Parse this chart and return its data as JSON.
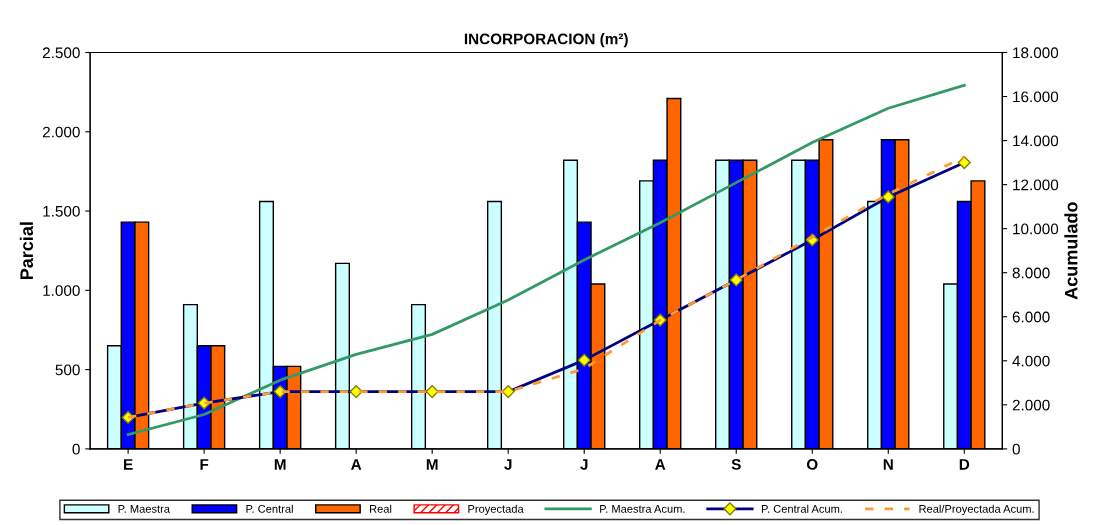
{
  "chart_data": {
    "type": "bar",
    "title": "INCORPORACION (m²)",
    "ylabel": "Parcial",
    "y2label": "Acumulado",
    "categories": [
      "E",
      "F",
      "M",
      "A",
      "M",
      "J",
      "J",
      "A",
      "S",
      "O",
      "N",
      "D"
    ],
    "series": [
      {
        "name": "P. Maestra",
        "color": "#ccffff",
        "values": [
          650,
          910,
          1560,
          1170,
          910,
          1560,
          1820,
          1690,
          1820,
          1820,
          1560,
          1040
        ]
      },
      {
        "name": "P. Central",
        "color": "#0000ff",
        "values": [
          1430,
          650,
          520,
          null,
          null,
          null,
          1430,
          1820,
          1820,
          1820,
          1950,
          1560
        ]
      },
      {
        "name": "Real",
        "color": "#ff6600",
        "values": [
          1430,
          650,
          520,
          null,
          null,
          null,
          1040,
          2210,
          1820,
          1950,
          1950,
          1690
        ]
      },
      {
        "name": "Proyectada",
        "color": "#ff0000",
        "values": [
          null,
          null,
          null,
          null,
          null,
          null,
          null,
          null,
          null,
          null,
          null,
          null
        ]
      },
      {
        "name": "P. Maestra Acum.",
        "type": "line",
        "axis": "y2",
        "color": "#339966",
        "line_style": "solid",
        "marker": "none",
        "values": [
          650,
          1560,
          3120,
          4290,
          5200,
          6760,
          8580,
          10270,
          12090,
          13910,
          15470,
          16510
        ]
      },
      {
        "name": "P. Central Acum.",
        "type": "line",
        "axis": "y2",
        "color": "#000080",
        "line_style": "solid",
        "marker": "diamond",
        "values": [
          1430,
          2080,
          2600,
          2600,
          2600,
          2600,
          4030,
          5850,
          7670,
          9490,
          11440,
          13000
        ]
      },
      {
        "name": "Real/Proyectada Acum.",
        "type": "line",
        "axis": "y2",
        "color": "#ff9933",
        "line_style": "dashed",
        "marker": "none",
        "values": [
          1430,
          2080,
          2600,
          2600,
          2600,
          2600,
          3640,
          5850,
          7670,
          9620,
          11570,
          13260
        ]
      }
    ],
    "ylim": [
      0,
      2500
    ],
    "yticks": [
      0,
      500,
      {
        "value": 1000,
        "label": "1.000"
      },
      {
        "value": 1500,
        "label": "1.500"
      },
      {
        "value": 2000,
        "label": "2.000"
      },
      {
        "value": 2500,
        "label": "2.500"
      }
    ],
    "y2lim": [
      0,
      18000
    ],
    "y2ticks": [
      0,
      {
        "value": 2000,
        "label": "2.000"
      },
      {
        "value": 4000,
        "label": "4.000"
      },
      {
        "value": 6000,
        "label": "6.000"
      },
      {
        "value": 8000,
        "label": "8.000"
      },
      {
        "value": 10000,
        "label": "10.000"
      },
      {
        "value": 12000,
        "label": "12.000"
      },
      {
        "value": 14000,
        "label": "14.000"
      },
      {
        "value": 16000,
        "label": "16.000"
      },
      {
        "value": 18000,
        "label": "18.000"
      }
    ],
    "grid": false,
    "legend": "bottom"
  }
}
